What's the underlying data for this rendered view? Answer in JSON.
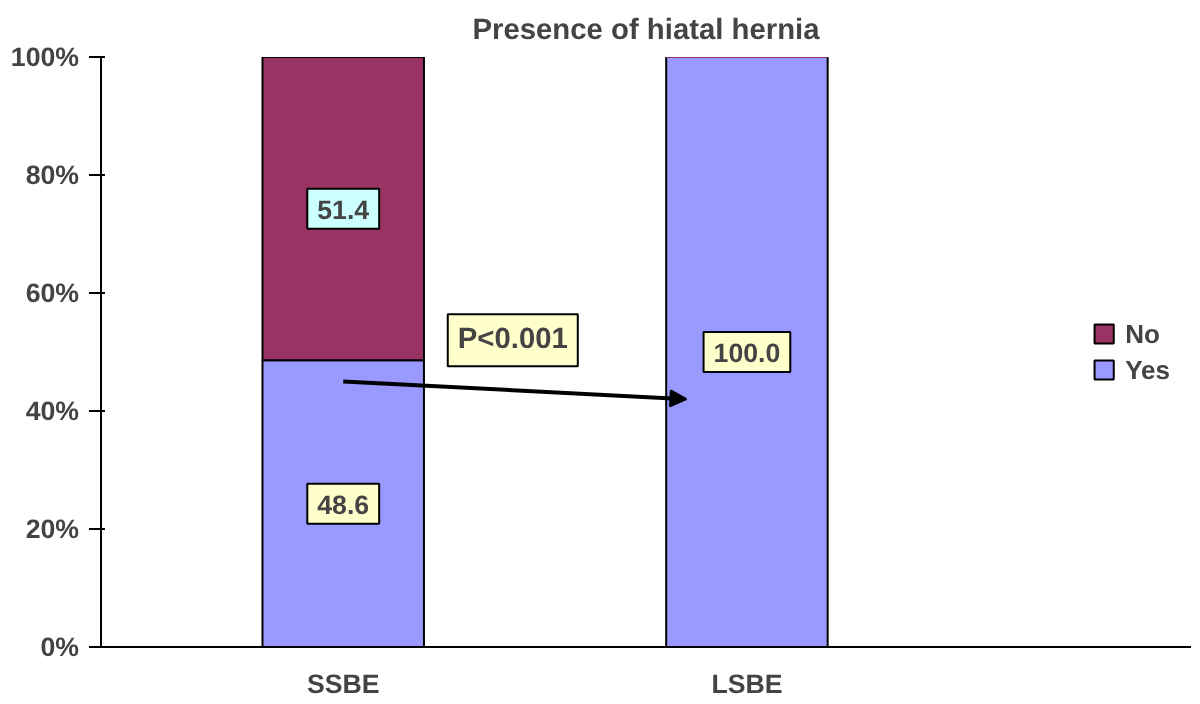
{
  "chart_data": {
    "type": "bar",
    "title": "Presence of hiatal hernia",
    "stacked": true,
    "categories": [
      "SSBE",
      "LSBE"
    ],
    "series": [
      {
        "name": "Yes",
        "color": "#9999ff",
        "values": [
          48.6,
          100.0
        ],
        "value_labels": [
          "48.6",
          "100.0"
        ]
      },
      {
        "name": "No",
        "color": "#993366",
        "values": [
          51.4,
          0
        ],
        "value_labels": [
          "51.4",
          null
        ]
      }
    ],
    "ylim": [
      0,
      100
    ],
    "yticks": [
      {
        "value": 0,
        "label": "0%"
      },
      {
        "value": 20,
        "label": "20%"
      },
      {
        "value": 40,
        "label": "40%"
      },
      {
        "value": 60,
        "label": "60%"
      },
      {
        "value": 80,
        "label": "80%"
      },
      {
        "value": 100,
        "label": "100%"
      }
    ],
    "annotations": [
      "P<0.001"
    ],
    "grid": false,
    "legend": "right"
  }
}
